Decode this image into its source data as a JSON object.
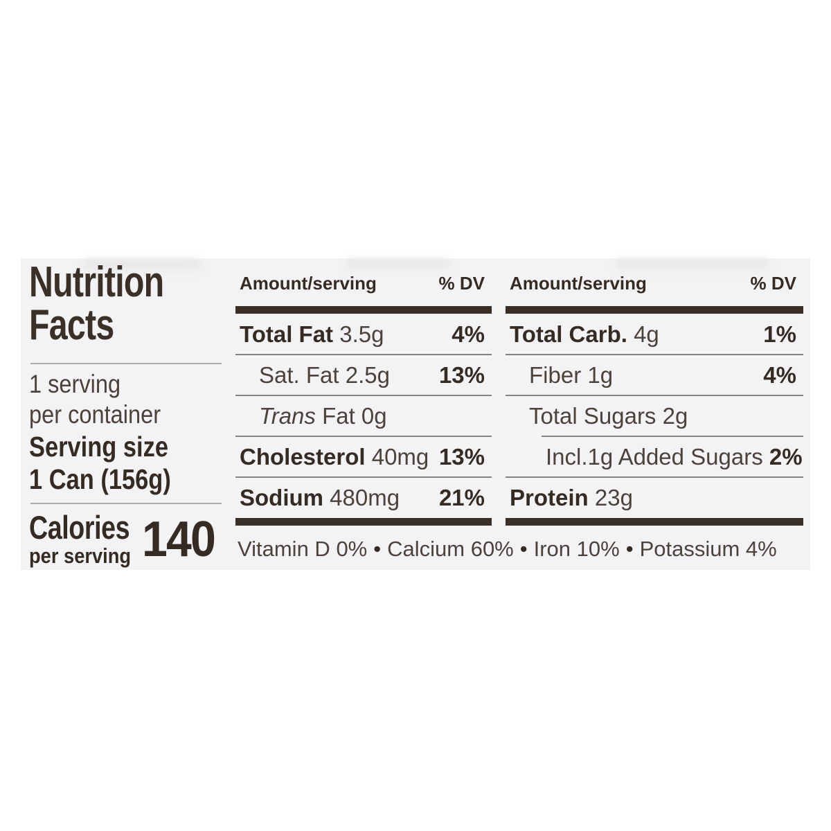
{
  "label": {
    "title_line1": "Nutrition",
    "title_line2": "Facts",
    "servings_line1": "1 serving",
    "servings_line2": "per container",
    "serving_size": {
      "label": "Serving size",
      "value": "1 Can (156g)"
    },
    "calories": {
      "label": "Calories",
      "sublabel": "per serving",
      "value": "140"
    },
    "column_headers": {
      "amount": "Amount/serving",
      "dv": "% DV"
    },
    "columns": {
      "left": {
        "rows": [
          {
            "name": "Total Fat",
            "value": "3.5g",
            "dv": "4%"
          },
          {
            "name": "Sat. Fat",
            "value": "2.5g",
            "dv": "13%"
          },
          {
            "name": "Trans",
            "value": "Fat 0g",
            "dv": ""
          },
          {
            "name": "Cholesterol",
            "value": "40mg",
            "dv": "13%"
          },
          {
            "name": "Sodium",
            "value": "480mg",
            "dv": "21%"
          }
        ]
      },
      "right": {
        "rows": [
          {
            "name": "Total Carb.",
            "value": "4g",
            "dv": "1%"
          },
          {
            "name": "Fiber",
            "value": "1g",
            "dv": "4%"
          },
          {
            "name": "Total Sugars",
            "value": "2g",
            "dv": ""
          },
          {
            "name": "Incl.1g Added Sugars",
            "value": "",
            "dv": "2%"
          },
          {
            "name": "Protein",
            "value": "23g",
            "dv": ""
          }
        ]
      }
    },
    "micronutrients": {
      "separator": "•",
      "items": [
        {
          "name": "Vitamin D",
          "value": "0%"
        },
        {
          "name": "Calcium",
          "value": "60%"
        },
        {
          "name": "Iron",
          "value": "10%"
        },
        {
          "name": "Potassium",
          "value": "4%"
        }
      ]
    }
  },
  "colors": {
    "label_background": "#f3f2f4",
    "page_background": "#ffffff",
    "text_bold": "#352b23",
    "text_regular": "#4a423b",
    "thick_bar": "#392f26",
    "thin_rule": "#85817e"
  }
}
